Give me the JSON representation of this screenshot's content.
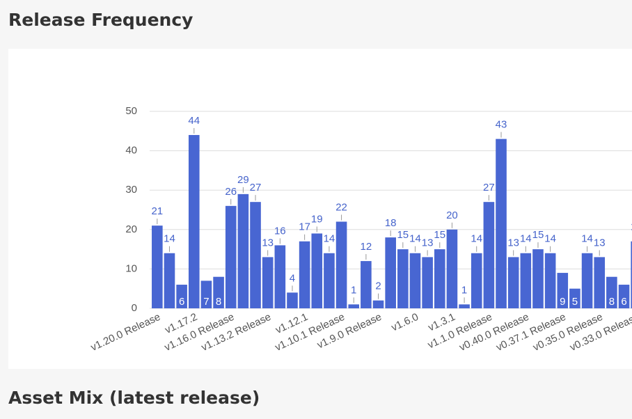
{
  "heading": "Release Frequency",
  "next_heading": "Asset Mix (latest release)",
  "chart_data": {
    "type": "bar",
    "categories": [
      "v1.20.0 Release",
      null,
      null,
      "v1.17.2",
      null,
      null,
      "v1.16.0 Release",
      null,
      null,
      "v1.13.2 Release",
      null,
      null,
      "v1.12.1",
      null,
      null,
      "v1.10.1 Release",
      null,
      null,
      "v1.9.0 Release",
      null,
      null,
      "v1.6.0",
      null,
      null,
      "v1.3.1",
      null,
      null,
      "v1.1.0 Release",
      null,
      null,
      "v0.40.0 Release",
      null,
      null,
      "v0.37.1 Release",
      null,
      null,
      "v0.35.0 Release",
      null,
      null,
      "v0.33.0 Release"
    ],
    "values": [
      21,
      14,
      6,
      44,
      7,
      8,
      26,
      29,
      27,
      13,
      16,
      4,
      17,
      19,
      14,
      22,
      1,
      12,
      2,
      18,
      15,
      14,
      13,
      15,
      20,
      1,
      14,
      27,
      43,
      13,
      14,
      15,
      14,
      9,
      5,
      14,
      13,
      8,
      6,
      17
    ],
    "color": "#4866d2",
    "ylim": [
      0,
      50
    ],
    "yticks": [
      0,
      10,
      20,
      30,
      40,
      50
    ],
    "grid": true
  }
}
